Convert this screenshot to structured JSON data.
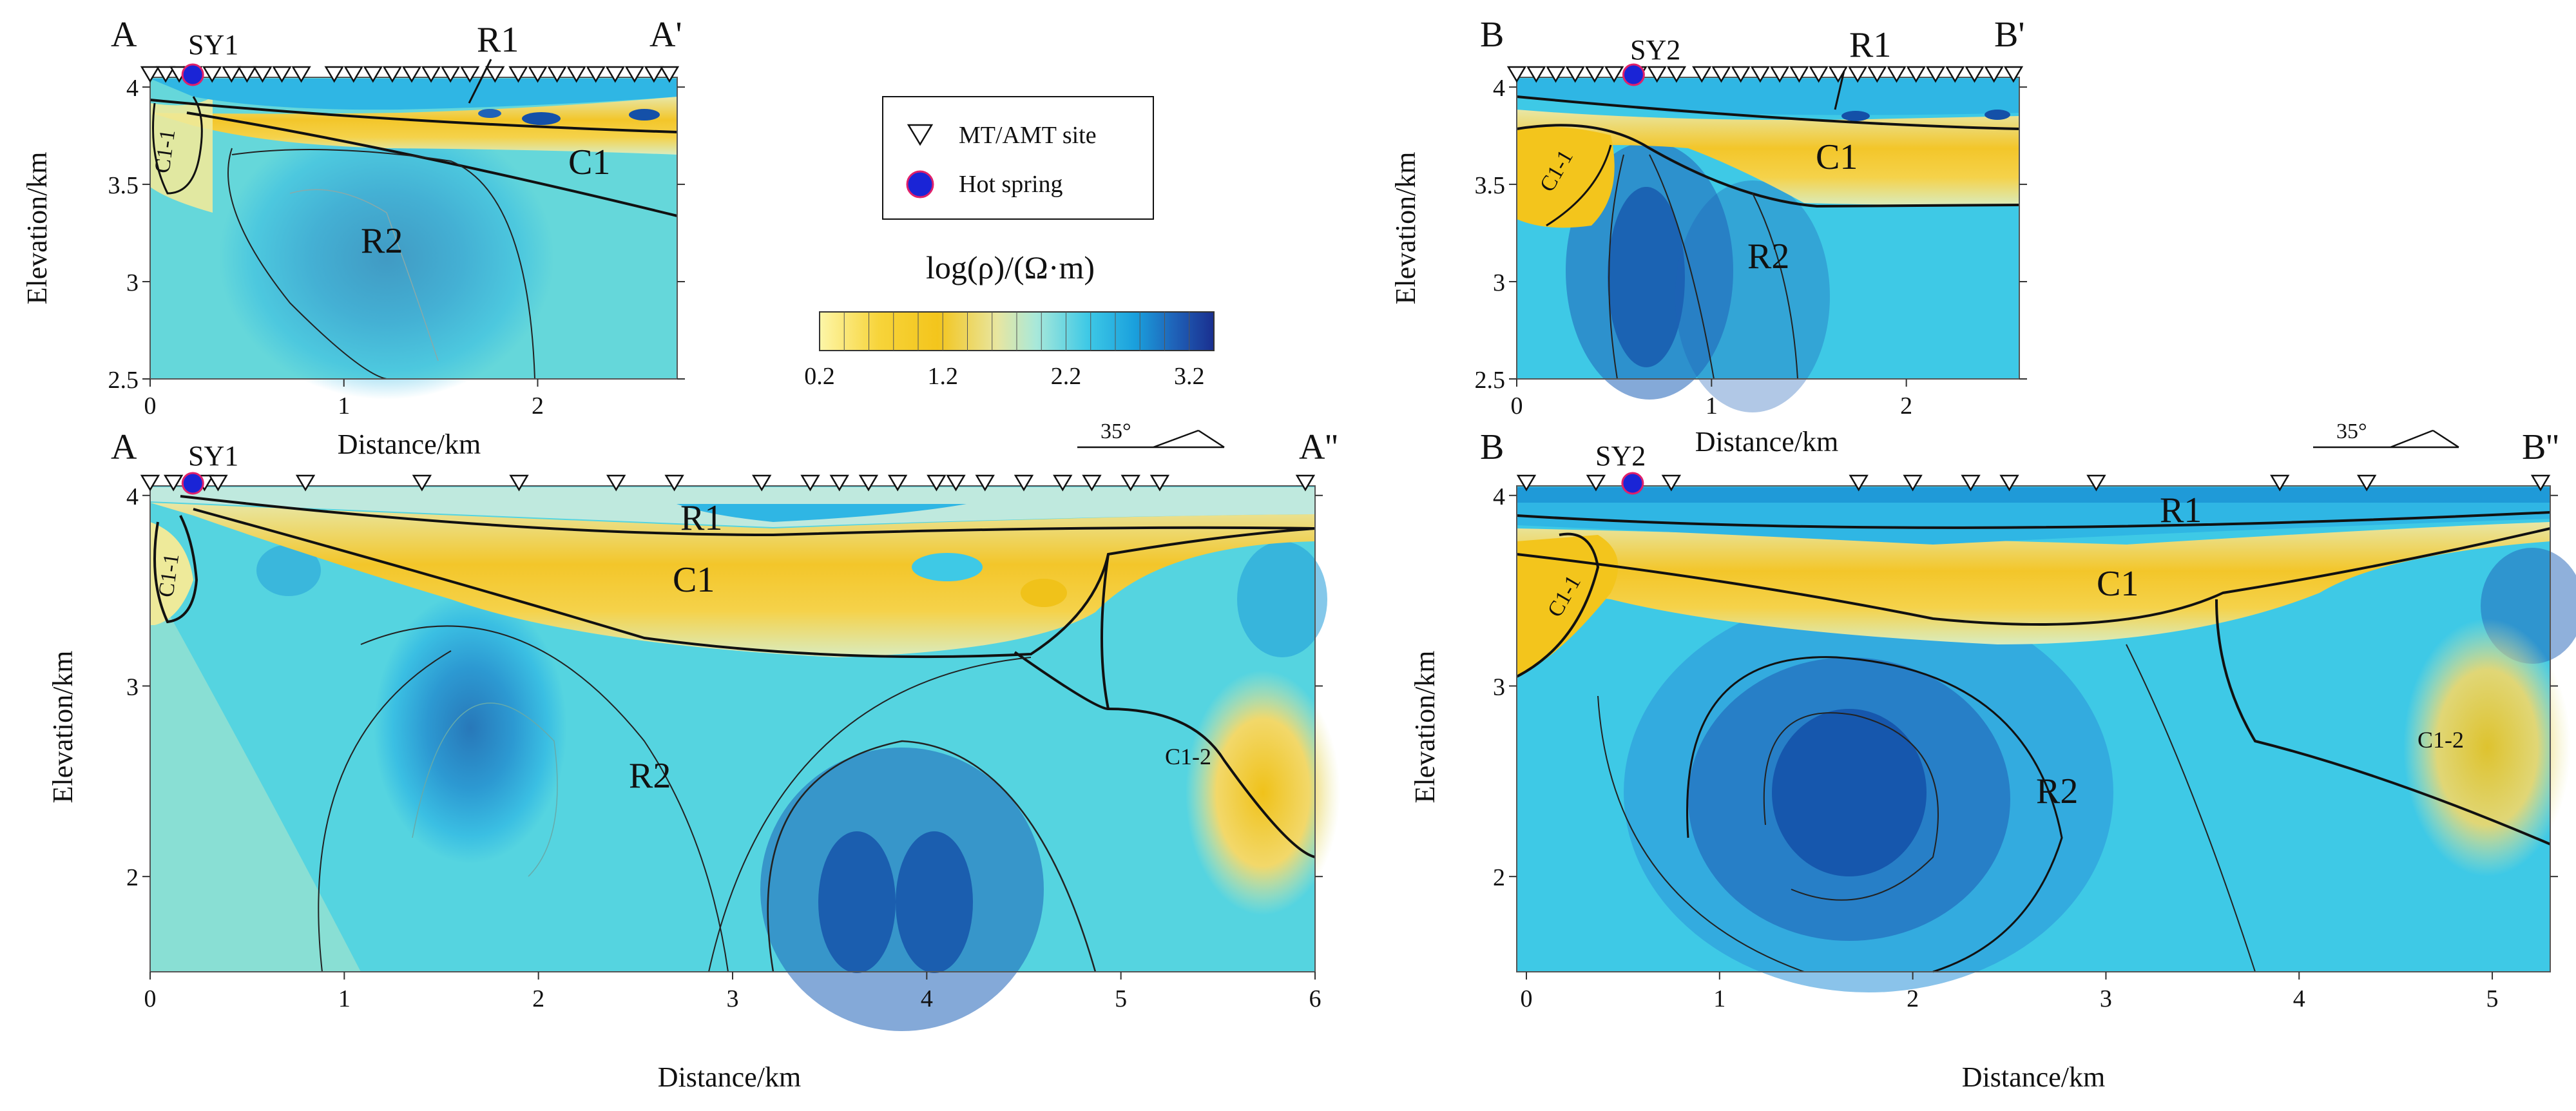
{
  "legend": {
    "mt_label": "MT/AMT site",
    "hot_spring_label": "Hot spring",
    "colorbar_title": "log(ρ)/(Ω·m)",
    "colorbar_ticks": [
      "0.2",
      "1.2",
      "2.2",
      "3.2"
    ],
    "colorbar_range": [
      0.2,
      3.4
    ]
  },
  "colors": {
    "low": "#f5d020",
    "mid": "#6fd8d6",
    "high": "#1a2f8f",
    "hot_spring": "#1a24d6",
    "hot_spring_edge": "#e0206a"
  },
  "panels": [
    {
      "id": "AA1",
      "start_label": "A",
      "end_label": "A'",
      "spring_label": "SY1",
      "zones": [
        "R1",
        "C1",
        "C1-1",
        "R2"
      ],
      "xlabel": "Distance/km",
      "ylabel": "Elevation/km",
      "xticks": [
        "0",
        "1",
        "2"
      ],
      "yticks": [
        "4",
        "3.5",
        "3",
        "2.5"
      ],
      "xlim": [
        0,
        2.72
      ],
      "ylim": [
        2.5,
        4.05
      ],
      "spring_x": 0.22,
      "sites": [
        0.0,
        0.08,
        0.15,
        0.22,
        0.32,
        0.42,
        0.5,
        0.58,
        0.68,
        0.78,
        0.95,
        1.05,
        1.15,
        1.25,
        1.35,
        1.45,
        1.55,
        1.65,
        1.78,
        1.9,
        2.0,
        2.1,
        2.2,
        2.3,
        2.4,
        2.5,
        2.6,
        2.68
      ]
    },
    {
      "id": "BB1",
      "start_label": "B",
      "end_label": "B'",
      "spring_label": "SY2",
      "zones": [
        "R1",
        "C1",
        "C1-1",
        "R2"
      ],
      "xlabel": "Distance/km",
      "ylabel": "Elevation/km",
      "xticks": [
        "0",
        "1",
        "2"
      ],
      "yticks": [
        "4",
        "3.5",
        "3",
        "2.5"
      ],
      "xlim": [
        0,
        2.58
      ],
      "ylim": [
        2.5,
        4.05
      ],
      "spring_x": 0.6,
      "sites": [
        0.0,
        0.1,
        0.2,
        0.3,
        0.4,
        0.5,
        0.62,
        0.72,
        0.82,
        0.95,
        1.05,
        1.15,
        1.25,
        1.35,
        1.45,
        1.55,
        1.65,
        1.75,
        1.85,
        1.95,
        2.05,
        2.15,
        2.25,
        2.35,
        2.45,
        2.55
      ]
    },
    {
      "id": "AA2",
      "start_label": "A",
      "end_label": "A''",
      "spring_label": "SY1",
      "zones": [
        "R1",
        "C1",
        "C1-1",
        "R2",
        "C1-2"
      ],
      "xlabel": "Distance/km",
      "ylabel": "Elevation/km",
      "xticks": [
        "0",
        "1",
        "2",
        "3",
        "4",
        "5",
        "6"
      ],
      "yticks": [
        "4",
        "3",
        "2"
      ],
      "xlim": [
        0,
        6.0
      ],
      "ylim": [
        1.5,
        4.05
      ],
      "spring_x": 0.22,
      "strike_label": "35°",
      "sites": [
        0.0,
        0.12,
        0.28,
        0.35,
        0.8,
        1.4,
        1.9,
        2.4,
        2.7,
        3.15,
        3.4,
        3.55,
        3.7,
        3.85,
        4.05,
        4.15,
        4.3,
        4.5,
        4.7,
        4.85,
        5.05,
        5.2,
        5.95
      ]
    },
    {
      "id": "BB2",
      "start_label": "B",
      "end_label": "B''",
      "spring_label": "SY2",
      "zones": [
        "R1",
        "C1",
        "C1-1",
        "R2",
        "C1-2"
      ],
      "xlabel": "Distance/km",
      "ylabel": "Elevation/km",
      "xticks": [
        "0",
        "1",
        "2",
        "3",
        "4",
        "5"
      ],
      "yticks": [
        "4",
        "3",
        "2"
      ],
      "xlim": [
        -0.05,
        5.3
      ],
      "ylim": [
        1.5,
        4.05
      ],
      "spring_x": 0.55,
      "strike_label": "35°",
      "sites": [
        0.0,
        0.36,
        0.75,
        1.72,
        2.0,
        2.3,
        2.5,
        2.95,
        3.9,
        4.35,
        5.25
      ]
    }
  ],
  "chart_data": [
    {
      "type": "heatmap",
      "title": "A–A' (SY1)",
      "xlabel": "Distance/km",
      "ylabel": "Elevation/km",
      "xlim": [
        0,
        2.72
      ],
      "ylim": [
        2.5,
        4.05
      ],
      "value_label": "log(ρ)/(Ω·m)",
      "value_range": [
        0.2,
        3.4
      ],
      "annotations": [
        "R1",
        "C1",
        "C1-1",
        "R2"
      ]
    },
    {
      "type": "heatmap",
      "title": "B–B' (SY2)",
      "xlabel": "Distance/km",
      "ylabel": "Elevation/km",
      "xlim": [
        0,
        2.58
      ],
      "ylim": [
        2.5,
        4.05
      ],
      "value_label": "log(ρ)/(Ω·m)",
      "value_range": [
        0.2,
        3.4
      ],
      "annotations": [
        "R1",
        "C1",
        "C1-1",
        "R2"
      ]
    },
    {
      "type": "heatmap",
      "title": "A–A'' (SY1)",
      "xlabel": "Distance/km",
      "ylabel": "Elevation/km",
      "xlim": [
        0,
        6.0
      ],
      "ylim": [
        1.5,
        4.05
      ],
      "value_label": "log(ρ)/(Ω·m)",
      "value_range": [
        0.2,
        3.4
      ],
      "annotations": [
        "R1",
        "C1",
        "C1-1",
        "R2",
        "C1-2"
      ]
    },
    {
      "type": "heatmap",
      "title": "B–B'' (SY2)",
      "xlabel": "Distance/km",
      "ylabel": "Elevation/km",
      "xlim": [
        -0.05,
        5.3
      ],
      "ylim": [
        1.5,
        4.05
      ],
      "value_label": "log(ρ)/(Ω·m)",
      "value_range": [
        0.2,
        3.4
      ],
      "annotations": [
        "R1",
        "C1",
        "C1-1",
        "R2",
        "C1-2"
      ]
    }
  ]
}
